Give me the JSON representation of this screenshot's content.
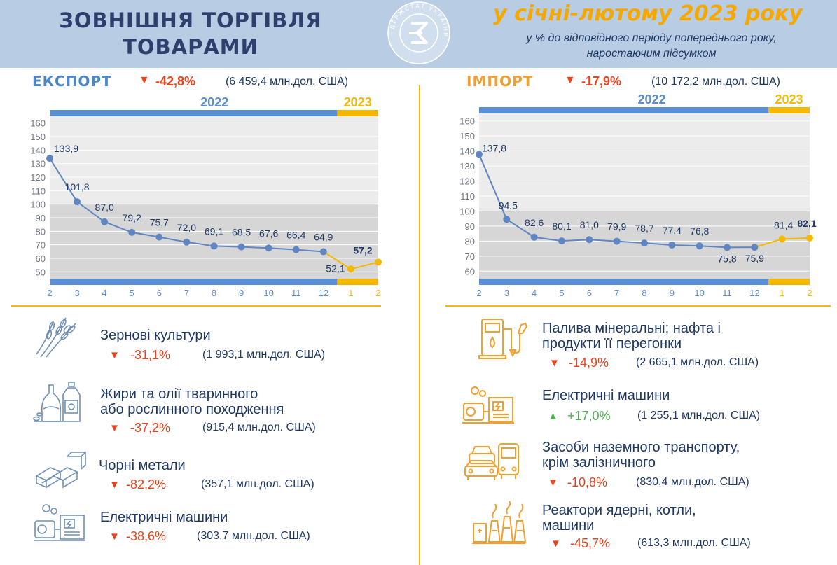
{
  "header": {
    "title_line1": "ЗОВНІШНЯ ТОРГІВЛЯ",
    "title_line2": "ТОВАРАМИ",
    "period": "у січні-лютому 2023 року",
    "subtitle_line1": "у % до відповідного періоду попереднього року,",
    "subtitle_line2": "наростаючим підсумком",
    "logo_text": "ДЕРЖСТАТ УКРАЇНИ"
  },
  "colors": {
    "header_bg": "#b8cce4",
    "blue": "#5b8fd4",
    "line_blue": "#5f86c2",
    "orange": "#f5b800",
    "export_title": "#4a86c8",
    "import_title": "#f0a030",
    "decline": "#e8431c",
    "growth": "#4caf50",
    "text": "#1f3864"
  },
  "export": {
    "title": "ЕКСПОРТ",
    "arrow": "▼",
    "change": "-42,8%",
    "amount": "(6 459,4 млн.дол. США)"
  },
  "import": {
    "title": "ІМПОРТ",
    "arrow": "▼",
    "change": "-17,9%",
    "amount": "(10 172,2 млн.дол. США)"
  },
  "chart_data": [
    {
      "type": "line",
      "name": "export",
      "year_labels": [
        "2022",
        "2023"
      ],
      "x": [
        "2",
        "3",
        "4",
        "5",
        "6",
        "7",
        "8",
        "9",
        "10",
        "11",
        "12",
        "1",
        "2"
      ],
      "values": [
        133.9,
        101.8,
        87.0,
        79.2,
        75.7,
        72.0,
        69.1,
        68.5,
        67.6,
        66.4,
        64.9,
        52.1,
        57.2
      ],
      "labels": [
        "133,9",
        "101,8",
        "87,0",
        "79,2",
        "75,7",
        "72,0",
        "69,1",
        "68,5",
        "67,6",
        "66,4",
        "64,9",
        "52,1",
        "57,2"
      ],
      "yticks": [
        "50",
        "60",
        "70",
        "80",
        "90",
        "100",
        "110",
        "120",
        "130",
        "140",
        "150",
        "160"
      ],
      "ylim": [
        45,
        165
      ],
      "shade_below": 100,
      "split_index": 10
    },
    {
      "type": "line",
      "name": "import",
      "year_labels": [
        "2022",
        "2023"
      ],
      "x": [
        "2",
        "3",
        "4",
        "5",
        "6",
        "7",
        "8",
        "9",
        "10",
        "11",
        "12",
        "1",
        "2"
      ],
      "values": [
        137.8,
        94.5,
        82.6,
        80.1,
        81.0,
        79.9,
        78.7,
        77.4,
        76.8,
        75.8,
        75.9,
        81.4,
        82.1
      ],
      "labels": [
        "137,8",
        "94,5",
        "82,6",
        "80,1",
        "81,0",
        "79,9",
        "78,7",
        "77,4",
        "76,8",
        "75,8",
        "75,9",
        "81,4",
        "82,1"
      ],
      "yticks": [
        "60",
        "70",
        "80",
        "90",
        "100",
        "110",
        "120",
        "130",
        "140",
        "150",
        "160"
      ],
      "ylim": [
        55,
        165
      ],
      "shade_below": 100,
      "split_index": 10
    }
  ],
  "export_items": [
    {
      "name_line1": "Зернові культури",
      "name_line2": "",
      "arrow": "▼",
      "change": "-31,1%",
      "amount": "(1 993,1 млн.дол. США)",
      "icon": "wheat-icon"
    },
    {
      "name_line1": "Жири та олії тваринного",
      "name_line2": "або рослинного походження",
      "arrow": "▼",
      "change": "-37,2%",
      "amount": "(915,4 млн.дол. США)",
      "icon": "oil-bottles-icon"
    },
    {
      "name_line1": "Чорні метали",
      "name_line2": "",
      "arrow": "▼",
      "change": "-82,2%",
      "amount": "(357,1 млн.дол. США)",
      "icon": "metal-bars-icon"
    },
    {
      "name_line1": "Електричні машини",
      "name_line2": "",
      "arrow": "▼",
      "change": "-38,6%",
      "amount": "(303,7 млн.дол. США)",
      "icon": "electric-machine-icon"
    }
  ],
  "import_items": [
    {
      "name_line1": "Палива мінеральні; нафта і",
      "name_line2": "продукти її перегонки",
      "arrow": "▼",
      "change": "-14,9%",
      "amount": "(2 665,1 млн.дол. США)",
      "icon": "fuel-pump-icon"
    },
    {
      "name_line1": "Електричні машини",
      "name_line2": "",
      "arrow": "▲",
      "change": "+17,0%",
      "amount": "(1 255,1 млн.дол. США)",
      "icon": "electric-machine-icon"
    },
    {
      "name_line1": "Засоби наземного транспорту,",
      "name_line2": "крім залізничного",
      "arrow": "▼",
      "change": "-10,8%",
      "amount": "(830,4  млн.дол. США)",
      "icon": "vehicles-icon"
    },
    {
      "name_line1": "Реактори ядерні, котли,",
      "name_line2": "машини",
      "arrow": "▼",
      "change": "-45,7%",
      "amount": "(613,3 млн.дол. США)",
      "icon": "reactor-plant-icon"
    }
  ]
}
